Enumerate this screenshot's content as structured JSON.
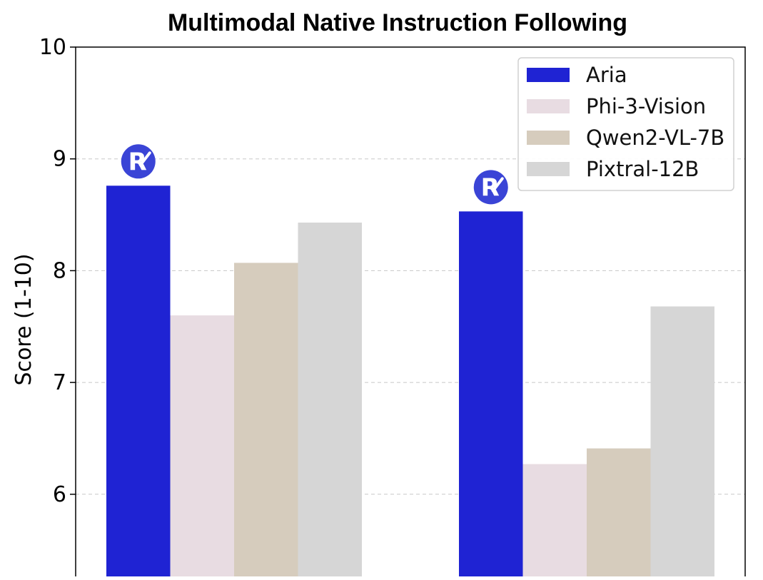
{
  "chart_data": {
    "type": "bar",
    "title": "Multimodal Native Instruction Following",
    "xlabel": "",
    "ylabel": "Score (1-10)",
    "ylim": [
      5.15,
      10
    ],
    "yticks": [
      "6",
      "7",
      "8",
      "9",
      "10"
    ],
    "grid": "horizontal dashed",
    "legend_position": "top-right",
    "groups": 2,
    "series": [
      {
        "name": "Aria",
        "color": "#1f23d3",
        "values": [
          8.76,
          8.53
        ]
      },
      {
        "name": "Phi-3-Vision",
        "color": "#e8dce2",
        "values": [
          7.6,
          6.27
        ]
      },
      {
        "name": "Qwen2-VL-7B",
        "color": "#d6ccbd",
        "values": [
          8.07,
          6.41
        ]
      },
      {
        "name": "Pixtral-12B",
        "color": "#d6d6d6",
        "values": [
          8.43,
          7.68
        ]
      }
    ],
    "annotations": [
      {
        "type": "logo-badge",
        "letter": "R",
        "series": "Aria",
        "group": 0,
        "icon": "aria-logo-icon",
        "color": "#3a44d6"
      },
      {
        "type": "logo-badge",
        "letter": "R",
        "series": "Aria",
        "group": 1,
        "icon": "aria-logo-icon",
        "color": "#3a44d6"
      }
    ]
  }
}
